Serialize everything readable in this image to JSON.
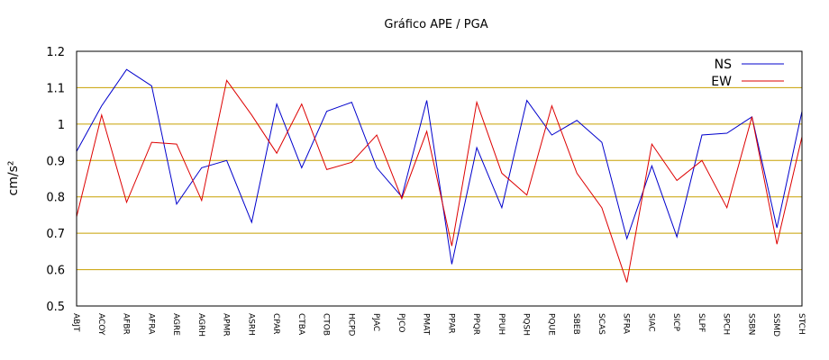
{
  "chart_data": {
    "type": "line",
    "title": "Gráfico  APE / PGA",
    "xlabel": "",
    "ylabel": "cm/s²",
    "ylim": [
      0.5,
      1.2
    ],
    "yticks": [
      "0.5",
      "0.6",
      "0.7",
      "0.8",
      "0.9",
      "1",
      "1.1",
      "1.2"
    ],
    "ytick_values": [
      0.5,
      0.6,
      0.7,
      0.8,
      0.9,
      1.0,
      1.1,
      1.2
    ],
    "grid": "horizontal",
    "legend_position": "top-right",
    "categories": [
      "ABJT",
      "ACOY",
      "AFBR",
      "AFRA",
      "AGRE",
      "AGRH",
      "APMR",
      "ASRH",
      "CPAR",
      "CTBA",
      "CTOB",
      "HCPD",
      "PJAC",
      "PJCO",
      "PMAT",
      "PPAR",
      "PPQR",
      "PPUH",
      "PQSH",
      "PQUE",
      "SBEB",
      "SCAS",
      "SFRA",
      "SIAC",
      "SICP",
      "SLPF",
      "SPCH",
      "SSBN",
      "SSMD",
      "STCH"
    ],
    "series": [
      {
        "name": "NS",
        "color": "#0000cc",
        "values": [
          0.925,
          1.05,
          1.15,
          1.105,
          0.78,
          0.88,
          0.9,
          0.73,
          1.055,
          0.88,
          1.035,
          1.06,
          0.88,
          0.8,
          1.065,
          0.615,
          0.935,
          0.77,
          1.065,
          0.97,
          1.01,
          0.95,
          0.685,
          0.885,
          0.69,
          0.97,
          0.975,
          1.02,
          0.715,
          1.035
        ]
      },
      {
        "name": "EW",
        "color": "#dd0000",
        "values": [
          0.745,
          1.025,
          0.785,
          0.95,
          0.945,
          0.79,
          1.12,
          1.025,
          0.92,
          1.055,
          0.875,
          0.895,
          0.97,
          0.795,
          0.98,
          0.665,
          1.06,
          0.865,
          0.805,
          1.05,
          0.865,
          0.77,
          0.565,
          0.945,
          0.845,
          0.9,
          0.77,
          1.02,
          0.67,
          0.965
        ]
      }
    ]
  }
}
